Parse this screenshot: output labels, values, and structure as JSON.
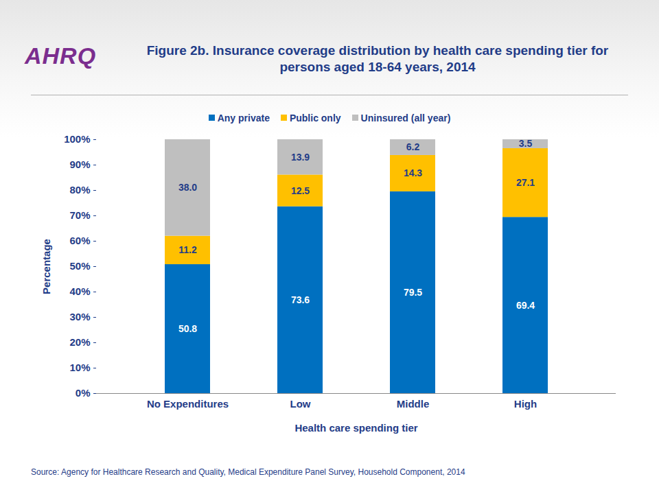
{
  "chart_data": {
    "type": "bar",
    "stacked": true,
    "title": "Figure 2b. Insurance coverage distribution by health care spending tier for persons aged 18-64 years, 2014",
    "logo": "AHRQ",
    "source": "Source: Agency for Healthcare Research and Quality, Medical Expenditure Panel Survey,  Household Component, 2014",
    "xlabel": "Health care spending tier",
    "ylabel": "Percentage",
    "categories": [
      "No Expenditures",
      "Low",
      "Middle",
      "High"
    ],
    "series": [
      {
        "name": "Any private",
        "color": "#0070c0",
        "values": [
          50.8,
          73.6,
          79.5,
          69.4
        ],
        "value_labels": [
          "50.8",
          "73.6",
          "79.5",
          "69.4"
        ]
      },
      {
        "name": "Public only",
        "color": "#ffc000",
        "values": [
          11.2,
          12.5,
          14.3,
          27.1
        ],
        "value_labels": [
          "11.2",
          "12.5",
          "14.3",
          "27.1"
        ]
      },
      {
        "name": "Uninsured (all year)",
        "color": "#bfbfbf",
        "values": [
          38.0,
          13.9,
          6.2,
          3.5
        ],
        "value_labels": [
          "38.0",
          "13.9",
          "6.2",
          "3.5"
        ]
      }
    ],
    "ylim": [
      0,
      100
    ],
    "yticks": [
      {
        "value": 0,
        "label": "0%"
      },
      {
        "value": 10,
        "label": "10%"
      },
      {
        "value": 20,
        "label": "20%"
      },
      {
        "value": 30,
        "label": "30%"
      },
      {
        "value": 40,
        "label": "40%"
      },
      {
        "value": 50,
        "label": "50%"
      },
      {
        "value": 60,
        "label": "60%"
      },
      {
        "value": 70,
        "label": "70%"
      },
      {
        "value": 80,
        "label": "80%"
      },
      {
        "value": 90,
        "label": "90%"
      },
      {
        "value": 100,
        "label": "100%"
      }
    ],
    "data_labels": true,
    "grid": false,
    "legend": "top"
  }
}
